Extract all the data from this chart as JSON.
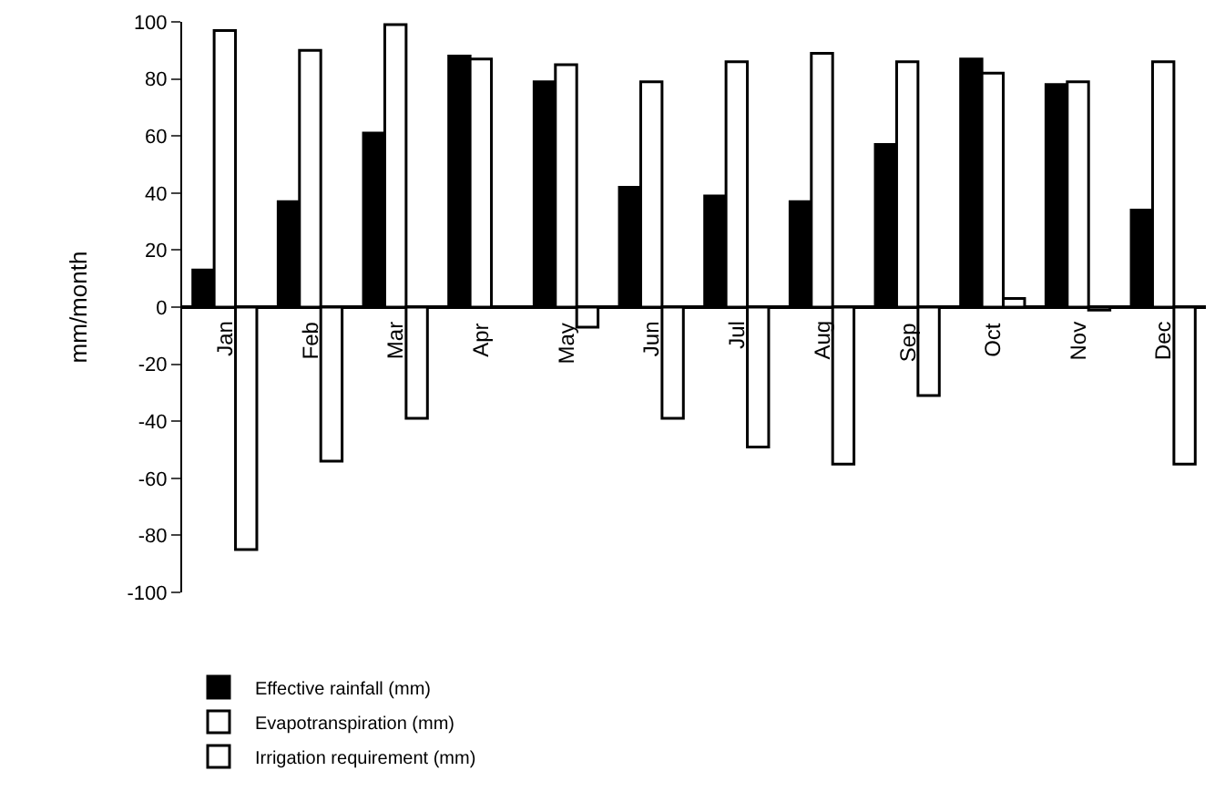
{
  "chart_data": {
    "type": "bar",
    "ylabel": "mm/month",
    "categories": [
      "Jan",
      "Feb",
      "Mar",
      "Apr",
      "May",
      "Jun",
      "Jul",
      "Aug",
      "Sep",
      "Oct",
      "Nov",
      "Dec"
    ],
    "series": [
      {
        "name": "Effective rainfall (mm)",
        "color": "#000000",
        "values": [
          13,
          37,
          61,
          88,
          79,
          42,
          39,
          37,
          57,
          87,
          78,
          34
        ]
      },
      {
        "name": "Evapotranspiration (mm)",
        "color": "#ffffff",
        "values": [
          97,
          90,
          99,
          87,
          85,
          79,
          86,
          89,
          86,
          82,
          79,
          86
        ]
      },
      {
        "name": "Irrigation requirement (mm)",
        "color": "#ffffff",
        "values": [
          -85,
          -54,
          -39,
          null,
          -7,
          -39,
          -49,
          -55,
          -31,
          3,
          -1,
          -55
        ]
      }
    ],
    "ylim": [
      -100,
      100
    ],
    "yticks": [
      -100,
      -80,
      -60,
      -40,
      -20,
      0,
      20,
      40,
      60,
      80,
      100
    ],
    "legend": "bottom left"
  }
}
